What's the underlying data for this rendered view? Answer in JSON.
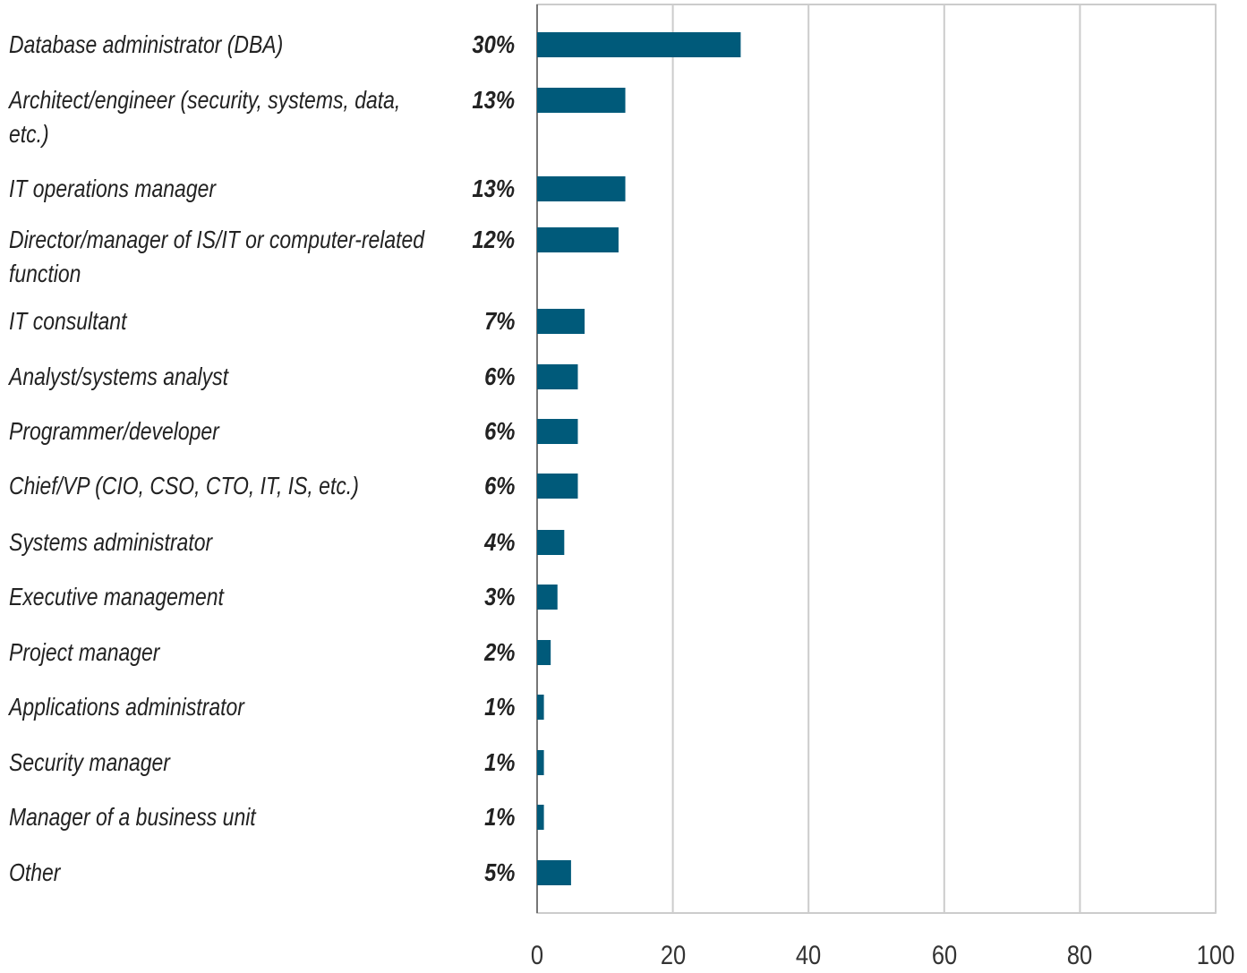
{
  "chart_data": {
    "type": "bar",
    "orientation": "horizontal",
    "categories": [
      "Database administrator (DBA)",
      "Architect/engineer (security, systems, data, etc.)",
      "IT operations manager",
      "Director/manager of IS/IT or computer-related function",
      "IT consultant",
      "Analyst/systems analyst",
      "Programmer/developer",
      "Chief/VP (CIO, CSO, CTO, IT, IS, etc.)",
      "Systems administrator",
      "Executive management",
      "Project manager",
      "Applications administrator",
      "Security manager",
      "Manager of a business unit",
      "Other"
    ],
    "values": [
      30,
      13,
      13,
      12,
      7,
      6,
      6,
      6,
      4,
      3,
      2,
      1,
      1,
      1,
      5
    ],
    "value_labels": [
      "30%",
      "13%",
      "13%",
      "12%",
      "7%",
      "6%",
      "6%",
      "6%",
      "4%",
      "3%",
      "2%",
      "1%",
      "1%",
      "1%",
      "5%"
    ],
    "color": "#005a7a",
    "xlim": [
      0,
      100
    ],
    "xticks": [
      0,
      20,
      40,
      60,
      80,
      100
    ],
    "grid": true
  }
}
